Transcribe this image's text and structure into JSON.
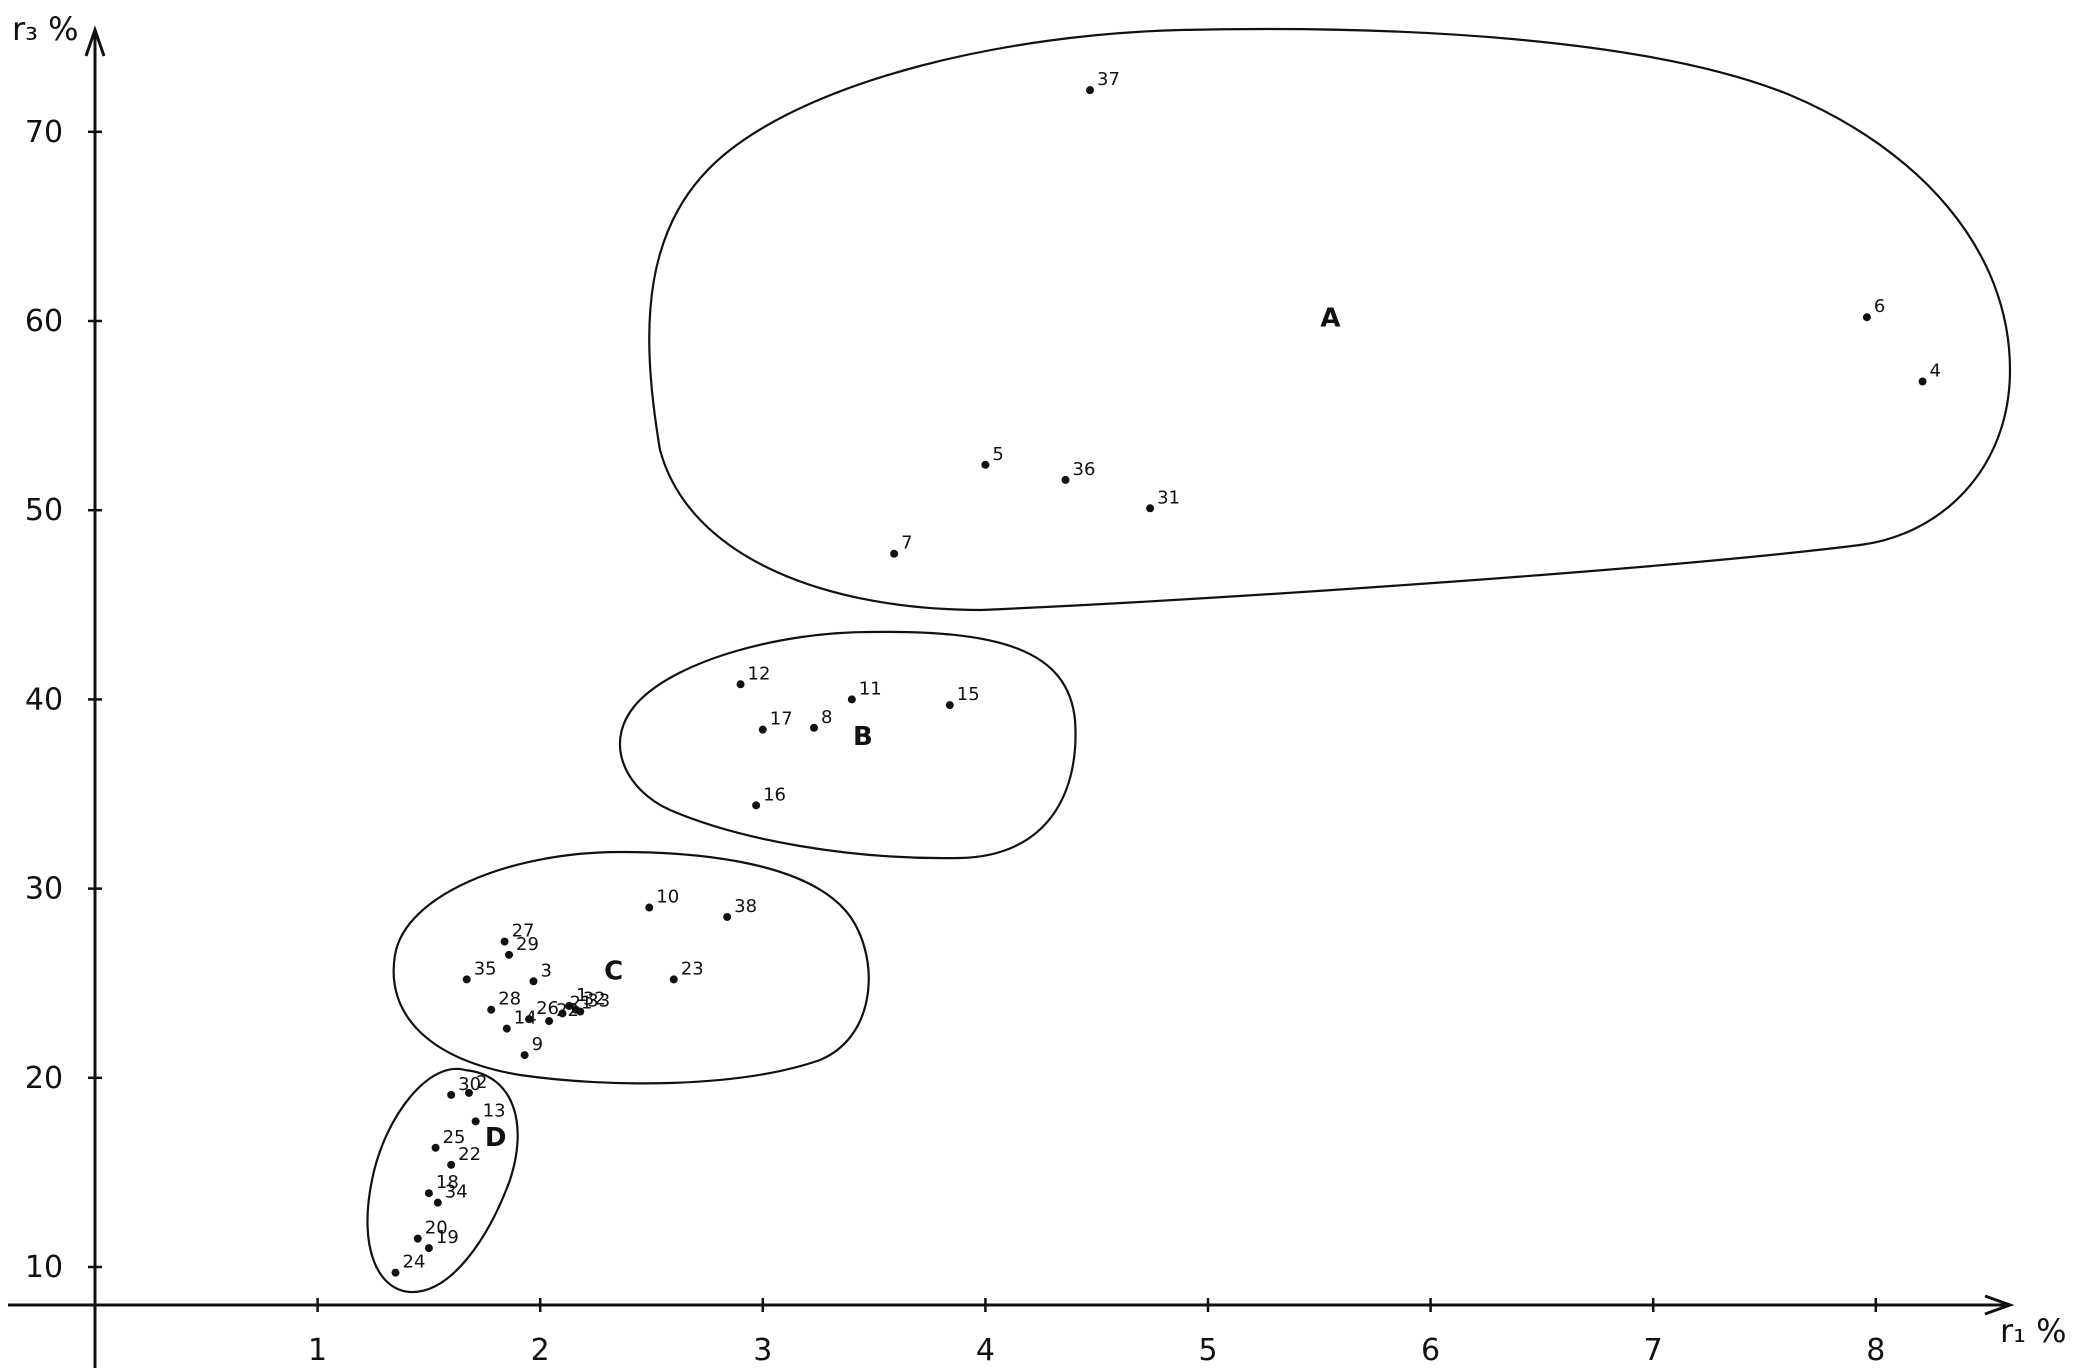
{
  "chart_data": {
    "type": "scatter",
    "title": "",
    "xlabel": "r₁ %",
    "ylabel": "r₃ %",
    "xlim": [
      0,
      8.5
    ],
    "ylim": [
      8,
      74
    ],
    "x_ticks": [
      1,
      2,
      3,
      4,
      5,
      6,
      7,
      8
    ],
    "y_ticks": [
      10,
      20,
      30,
      40,
      50,
      60,
      70
    ],
    "grid": false,
    "points": [
      {
        "label": "37",
        "x": 4.47,
        "y": 72.2,
        "group": "A"
      },
      {
        "label": "6",
        "x": 7.96,
        "y": 60.2,
        "group": "A"
      },
      {
        "label": "4",
        "x": 8.21,
        "y": 56.8,
        "group": "A"
      },
      {
        "label": "5",
        "x": 4.0,
        "y": 52.4,
        "group": "A"
      },
      {
        "label": "36",
        "x": 4.36,
        "y": 51.6,
        "group": "A"
      },
      {
        "label": "31",
        "x": 4.74,
        "y": 50.1,
        "group": "A"
      },
      {
        "label": "7",
        "x": 3.59,
        "y": 47.7,
        "group": "A"
      },
      {
        "label": "12",
        "x": 2.9,
        "y": 40.8,
        "group": "B"
      },
      {
        "label": "11",
        "x": 3.4,
        "y": 40.0,
        "group": "B"
      },
      {
        "label": "15",
        "x": 3.84,
        "y": 39.7,
        "group": "B"
      },
      {
        "label": "17",
        "x": 3.0,
        "y": 38.4,
        "group": "B"
      },
      {
        "label": "8",
        "x": 3.23,
        "y": 38.5,
        "group": "B"
      },
      {
        "label": "16",
        "x": 2.97,
        "y": 34.4,
        "group": "B"
      },
      {
        "label": "10",
        "x": 2.49,
        "y": 29.0,
        "group": "C"
      },
      {
        "label": "38",
        "x": 2.84,
        "y": 28.5,
        "group": "C"
      },
      {
        "label": "27",
        "x": 1.84,
        "y": 27.2,
        "group": "C"
      },
      {
        "label": "29",
        "x": 1.86,
        "y": 26.5,
        "group": "C"
      },
      {
        "label": "35",
        "x": 1.67,
        "y": 25.2,
        "group": "C"
      },
      {
        "label": "3",
        "x": 1.97,
        "y": 25.1,
        "group": "C"
      },
      {
        "label": "23",
        "x": 2.6,
        "y": 25.2,
        "group": "C"
      },
      {
        "label": "28",
        "x": 1.78,
        "y": 23.6,
        "group": "C"
      },
      {
        "label": "26",
        "x": 1.95,
        "y": 23.1,
        "group": "C"
      },
      {
        "label": "22",
        "x": 2.04,
        "y": 23.0,
        "group": "C"
      },
      {
        "label": "21",
        "x": 2.1,
        "y": 23.4,
        "group": "C"
      },
      {
        "label": "1",
        "x": 2.13,
        "y": 23.8,
        "group": "C"
      },
      {
        "label": "32",
        "x": 2.16,
        "y": 23.6,
        "group": "C"
      },
      {
        "label": "33",
        "x": 2.18,
        "y": 23.5,
        "group": "C"
      },
      {
        "label": "14",
        "x": 1.85,
        "y": 22.6,
        "group": "C"
      },
      {
        "label": "9",
        "x": 1.93,
        "y": 21.2,
        "group": "C"
      },
      {
        "label": "2",
        "x": 1.68,
        "y": 19.2,
        "group": "D"
      },
      {
        "label": "30",
        "x": 1.6,
        "y": 19.1,
        "group": "D"
      },
      {
        "label": "13",
        "x": 1.71,
        "y": 17.7,
        "group": "D"
      },
      {
        "label": "25",
        "x": 1.53,
        "y": 16.3,
        "group": "D"
      },
      {
        "label": "22",
        "x": 1.6,
        "y": 15.4,
        "group": "D"
      },
      {
        "label": "18",
        "x": 1.5,
        "y": 13.9,
        "group": "D"
      },
      {
        "label": "34",
        "x": 1.54,
        "y": 13.4,
        "group": "D"
      },
      {
        "label": "20",
        "x": 1.45,
        "y": 11.5,
        "group": "D"
      },
      {
        "label": "19",
        "x": 1.5,
        "y": 11.0,
        "group": "D"
      },
      {
        "label": "24",
        "x": 1.35,
        "y": 9.7,
        "group": "D"
      }
    ],
    "groups": [
      {
        "name": "A",
        "label_x": 5.55,
        "label_y": 59.7
      },
      {
        "name": "B",
        "label_x": 3.45,
        "label_y": 37.6
      },
      {
        "name": "C",
        "label_x": 2.33,
        "label_y": 25.2
      },
      {
        "name": "D",
        "label_x": 1.8,
        "label_y": 16.4
      }
    ]
  }
}
